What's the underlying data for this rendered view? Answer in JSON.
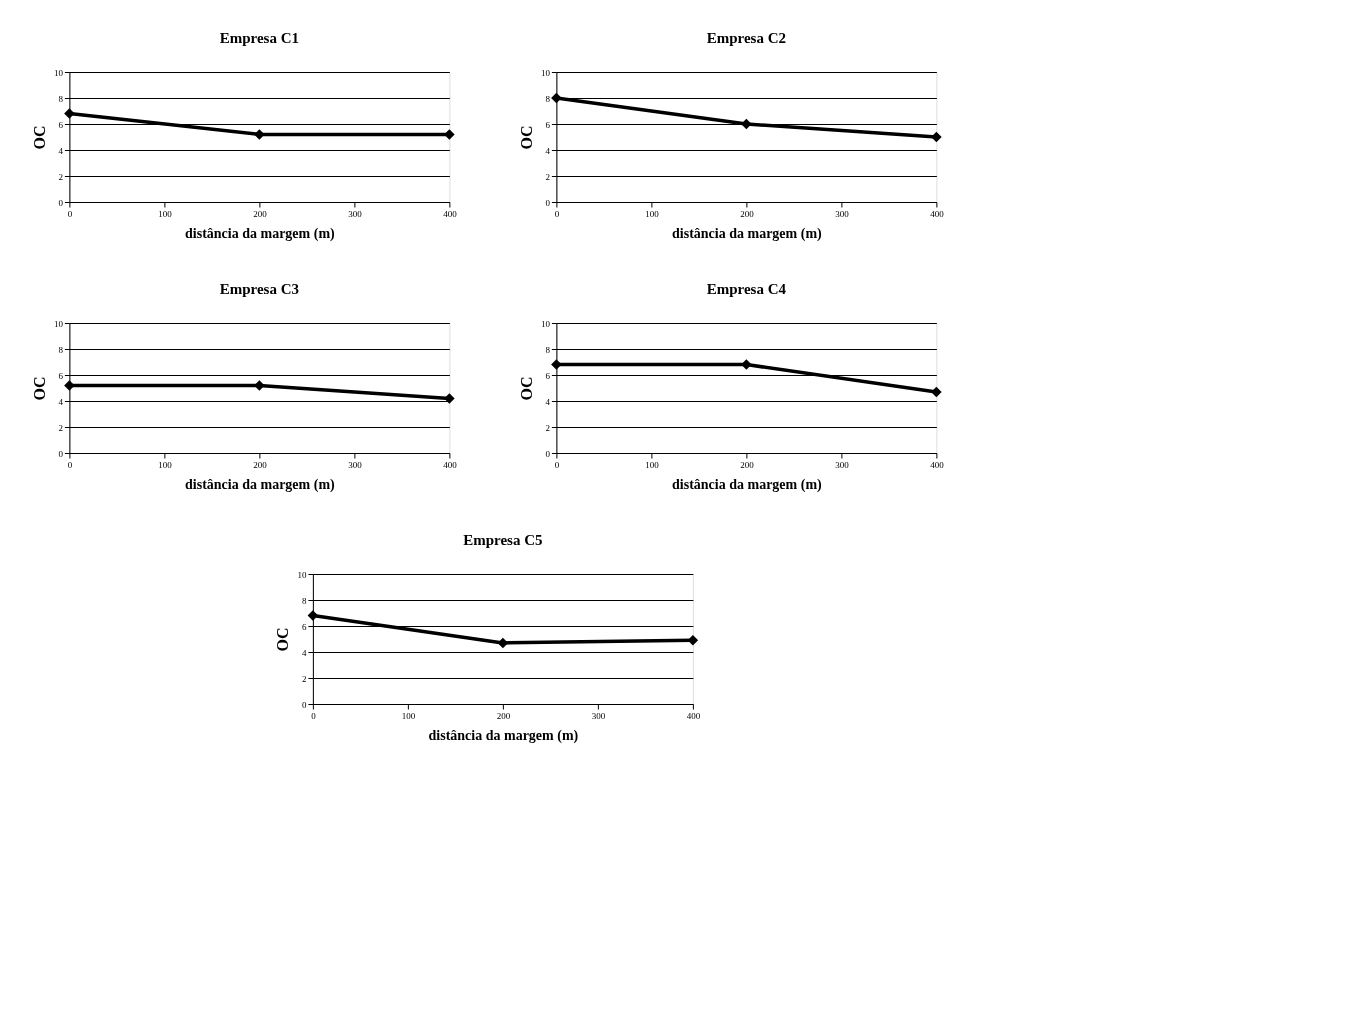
{
  "chart_data": [
    {
      "type": "line",
      "title": "Empresa C1",
      "xlabel": "distância da margem (m)",
      "ylabel": "OC",
      "x": [
        0,
        200,
        400
      ],
      "series": [
        {
          "color": "#000000",
          "values": [
            6.8,
            5.2,
            5.2
          ]
        }
      ],
      "xlim": [
        0,
        400
      ],
      "xticks": [
        0,
        100,
        200,
        300,
        400
      ],
      "ylim": [
        0,
        10
      ],
      "yticks": [
        0,
        2,
        4,
        6,
        8,
        10
      ],
      "grid": "y",
      "marker": "diamond",
      "line_style": "solid"
    },
    {
      "type": "line",
      "title": "Empresa C2",
      "xlabel": "distância da margem (m)",
      "ylabel": "OC",
      "x": [
        0,
        200,
        400
      ],
      "series": [
        {
          "color": "#000000",
          "values": [
            8,
            6,
            5
          ]
        }
      ],
      "xlim": [
        0,
        400
      ],
      "xticks": [
        0,
        100,
        200,
        300,
        400
      ],
      "ylim": [
        0,
        10
      ],
      "yticks": [
        0,
        2,
        4,
        6,
        8,
        10
      ],
      "grid": "y",
      "marker": "diamond",
      "line_style": "solid"
    },
    {
      "type": "line",
      "title": "Empresa C3",
      "xlabel": "distância da margem (m)",
      "ylabel": "OC",
      "x": [
        0,
        200,
        400
      ],
      "series": [
        {
          "color": "#000000",
          "values": [
            5.2,
            5.2,
            4.2
          ]
        }
      ],
      "xlim": [
        0,
        400
      ],
      "xticks": [
        0,
        100,
        200,
        300,
        400
      ],
      "ylim": [
        0,
        10
      ],
      "yticks": [
        0,
        2,
        4,
        6,
        8,
        10
      ],
      "grid": "y",
      "marker": "diamond",
      "line_style": "solid"
    },
    {
      "type": "line",
      "title": "Empresa C4",
      "xlabel": "distância da margem (m)",
      "ylabel": "OC",
      "x": [
        0,
        200,
        400
      ],
      "series": [
        {
          "color": "#000000",
          "values": [
            6.8,
            6.8,
            4.7
          ]
        }
      ],
      "xlim": [
        0,
        400
      ],
      "xticks": [
        0,
        100,
        200,
        300,
        400
      ],
      "ylim": [
        0,
        10
      ],
      "yticks": [
        0,
        2,
        4,
        6,
        8,
        10
      ],
      "grid": "y",
      "marker": "diamond",
      "line_style": "solid"
    },
    {
      "type": "line",
      "title": "Empresa C5",
      "xlabel": "distância da margem (m)",
      "ylabel": "OC",
      "x": [
        0,
        200,
        400
      ],
      "series": [
        {
          "color": "#000000",
          "values": [
            6.8,
            4.7,
            4.9
          ]
        }
      ],
      "xlim": [
        0,
        400
      ],
      "xticks": [
        0,
        100,
        200,
        300,
        400
      ],
      "ylim": [
        0,
        10
      ],
      "yticks": [
        0,
        2,
        4,
        6,
        8,
        10
      ],
      "grid": "y",
      "marker": "diamond",
      "line_style": "solid"
    }
  ]
}
